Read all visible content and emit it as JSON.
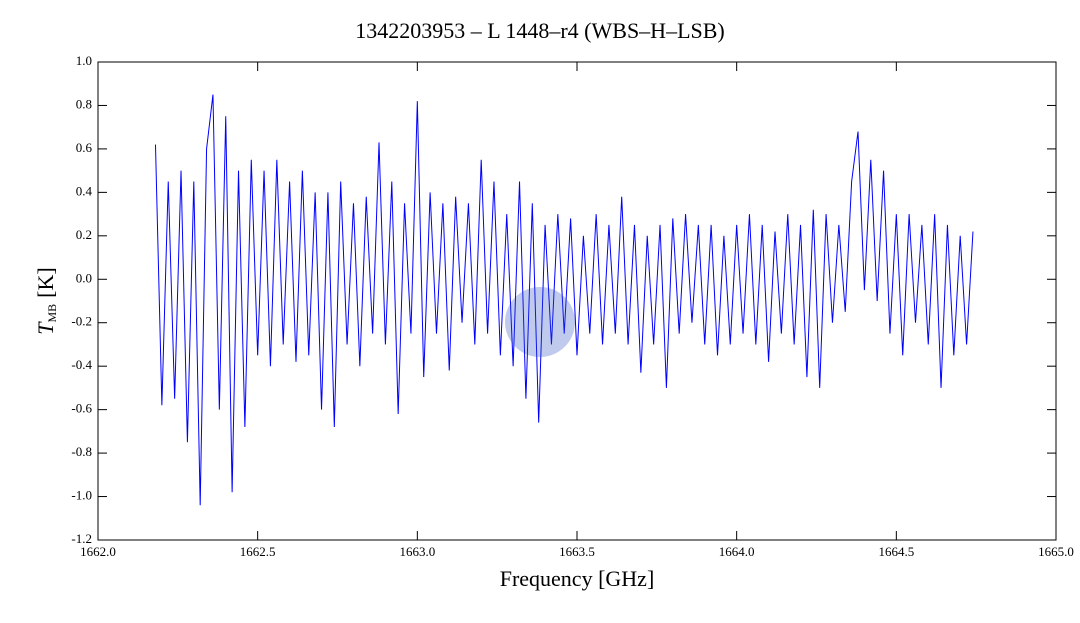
{
  "chart_data": {
    "type": "line",
    "title": "1342203953 – L 1448–r4 (WBS–H–LSB)",
    "xlabel": "Frequency [GHz]",
    "ylabel_symbol": "T",
    "ylabel_subscript": "MB",
    "ylabel_unit": "[K]",
    "xlim": [
      1662.0,
      1665.0
    ],
    "xticks": [
      {
        "value": 1662,
        "label": "1662.0"
      },
      {
        "value": 1662.5,
        "label": "1662.5"
      },
      {
        "value": 1663,
        "label": "1663.0"
      },
      {
        "value": 1663.5,
        "label": "1663.5"
      },
      {
        "value": 1664,
        "label": "1664.0"
      },
      {
        "value": 1664.5,
        "label": "1664.5"
      },
      {
        "value": 1665,
        "label": "1665.0"
      }
    ],
    "ylim": [
      -1.2,
      1.0
    ],
    "yticks": [
      {
        "value": -1.2,
        "label": "-1.2"
      },
      {
        "value": -1,
        "label": "-1.0"
      },
      -0.8,
      -0.6,
      -0.4,
      -0.2,
      {
        "value": 0,
        "label": "0.0"
      },
      0.2,
      0.4,
      0.6,
      0.8,
      {
        "value": 1,
        "label": "1.0"
      }
    ],
    "series": [
      {
        "color": "#0000ff",
        "x": [
          1662.18,
          1662.2,
          1662.22,
          1662.24,
          1662.26,
          1662.28,
          1662.3,
          1662.32,
          1662.34,
          1662.36,
          1662.38,
          1662.4,
          1662.42,
          1662.44,
          1662.46,
          1662.48,
          1662.5,
          1662.52,
          1662.54,
          1662.56,
          1662.58,
          1662.6,
          1662.62,
          1662.64,
          1662.66,
          1662.68,
          1662.7,
          1662.72,
          1662.74,
          1662.76,
          1662.78,
          1662.8,
          1662.82,
          1662.84,
          1662.86,
          1662.88,
          1662.9,
          1662.92,
          1662.94,
          1662.96,
          1662.98,
          1663.0,
          1663.02,
          1663.04,
          1663.06,
          1663.08,
          1663.1,
          1663.12,
          1663.14,
          1663.16,
          1663.18,
          1663.2,
          1663.22,
          1663.24,
          1663.26,
          1663.28,
          1663.3,
          1663.32,
          1663.34,
          1663.36,
          1663.38,
          1663.4,
          1663.42,
          1663.44,
          1663.46,
          1663.48,
          1663.5,
          1663.52,
          1663.54,
          1663.56,
          1663.58,
          1663.6,
          1663.62,
          1663.64,
          1663.66,
          1663.68,
          1663.7,
          1663.72,
          1663.74,
          1663.76,
          1663.78,
          1663.8,
          1663.82,
          1663.84,
          1663.86,
          1663.88,
          1663.9,
          1663.92,
          1663.94,
          1663.96,
          1663.98,
          1664.0,
          1664.02,
          1664.04,
          1664.06,
          1664.08,
          1664.1,
          1664.12,
          1664.14,
          1664.16,
          1664.18,
          1664.2,
          1664.22,
          1664.24,
          1664.26,
          1664.28,
          1664.3,
          1664.32,
          1664.34,
          1664.36,
          1664.38,
          1664.4,
          1664.42,
          1664.44,
          1664.46,
          1664.48,
          1664.5,
          1664.52,
          1664.54,
          1664.56,
          1664.58,
          1664.6,
          1664.62,
          1664.64,
          1664.66,
          1664.68,
          1664.7,
          1664.72,
          1664.74
        ],
        "values": [
          0.62,
          -0.58,
          0.45,
          -0.55,
          0.5,
          -0.75,
          0.45,
          -1.04,
          0.6,
          0.85,
          -0.6,
          0.75,
          -0.98,
          0.5,
          -0.68,
          0.55,
          -0.35,
          0.5,
          -0.4,
          0.55,
          -0.3,
          0.45,
          -0.38,
          0.5,
          -0.35,
          0.4,
          -0.6,
          0.4,
          -0.68,
          0.45,
          -0.3,
          0.35,
          -0.4,
          0.38,
          -0.25,
          0.63,
          -0.3,
          0.45,
          -0.62,
          0.35,
          -0.25,
          0.82,
          -0.45,
          0.4,
          -0.25,
          0.35,
          -0.42,
          0.38,
          -0.2,
          0.35,
          -0.3,
          0.55,
          -0.25,
          0.45,
          -0.35,
          0.3,
          -0.4,
          0.45,
          -0.55,
          0.35,
          -0.66,
          0.25,
          -0.3,
          0.3,
          -0.25,
          0.28,
          -0.35,
          0.2,
          -0.25,
          0.3,
          -0.3,
          0.25,
          -0.25,
          0.38,
          -0.3,
          0.25,
          -0.43,
          0.2,
          -0.3,
          0.25,
          -0.5,
          0.28,
          -0.25,
          0.3,
          -0.2,
          0.25,
          -0.3,
          0.25,
          -0.35,
          0.2,
          -0.3,
          0.25,
          -0.25,
          0.3,
          -0.3,
          0.25,
          -0.38,
          0.22,
          -0.25,
          0.3,
          -0.3,
          0.25,
          -0.45,
          0.32,
          -0.5,
          0.3,
          -0.2,
          0.25,
          -0.15,
          0.45,
          0.68,
          -0.05,
          0.55,
          -0.1,
          0.5,
          -0.25,
          0.3,
          -0.35,
          0.3,
          -0.2,
          0.25,
          -0.3,
          0.3,
          -0.5,
          0.25,
          -0.35,
          0.2,
          -0.3,
          0.22
        ]
      }
    ]
  }
}
